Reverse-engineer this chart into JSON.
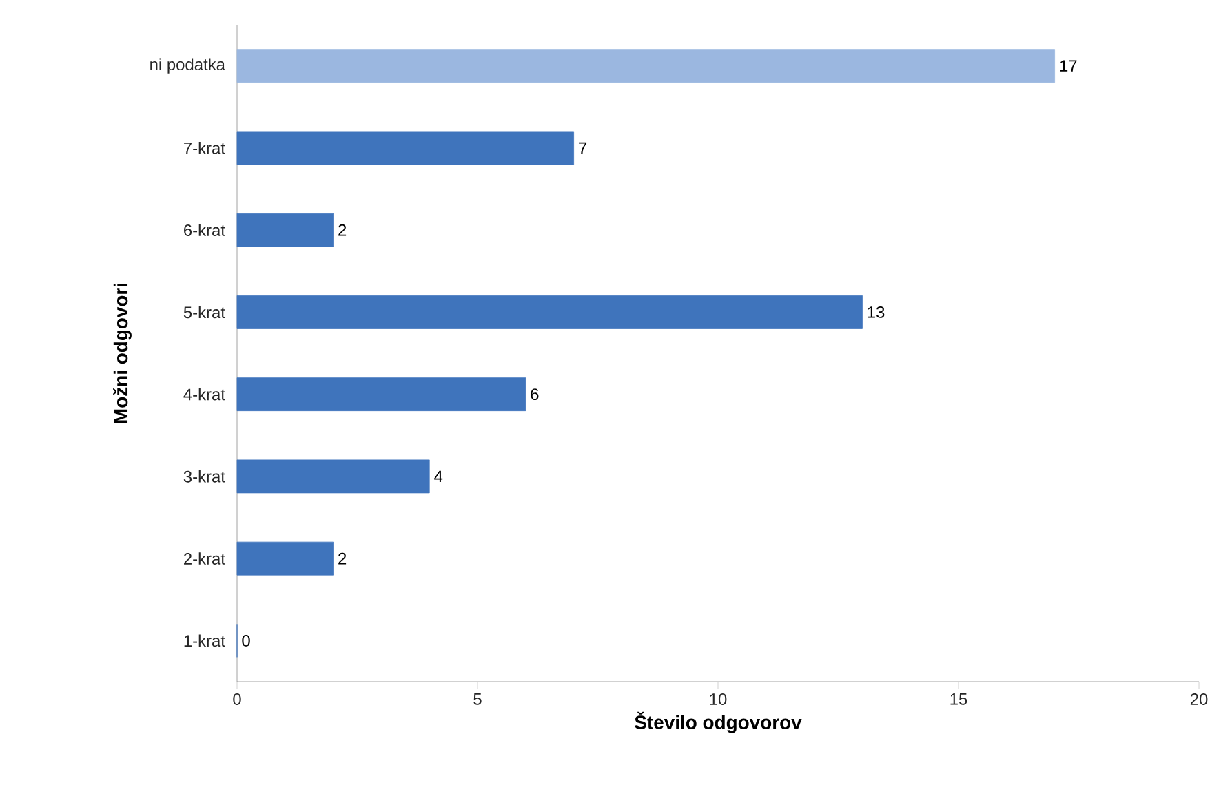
{
  "chart_data": {
    "type": "bar",
    "orientation": "horizontal",
    "categories": [
      "ni podatka",
      "7-krat",
      "6-krat",
      "5-krat",
      "4-krat",
      "3-krat",
      "2-krat",
      "1-krat"
    ],
    "values": [
      17,
      7,
      2,
      13,
      6,
      4,
      2,
      0
    ],
    "colors": [
      "#9bb7e0",
      "#3f74bc",
      "#3f74bc",
      "#3f74bc",
      "#3f74bc",
      "#3f74bc",
      "#3f74bc",
      "#3f74bc"
    ],
    "xlim": [
      0,
      20
    ],
    "xticks": [
      0,
      5,
      10,
      15,
      20
    ],
    "xlabel": "Število odgovorov",
    "ylabel": "Možni odgovori",
    "data_labels": true
  }
}
